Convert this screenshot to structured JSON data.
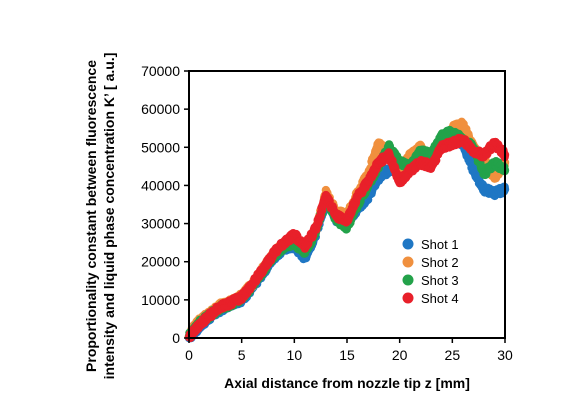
{
  "chart_data": {
    "type": "scatter",
    "xlabel": "Axial distance from nozzle tip z [mm]",
    "ylabel_lines": [
      "Proportionality constant between fluorescence",
      "intensity and liquid phase concentration  K’ [ a.u.]"
    ],
    "xlim": [
      0,
      30
    ],
    "ylim": [
      0,
      70000
    ],
    "x_ticks": [
      "0",
      "5",
      "10",
      "15",
      "20",
      "25",
      "30"
    ],
    "y_ticks": [
      "0",
      "10000",
      "20000",
      "30000",
      "40000",
      "50000",
      "60000",
      "70000"
    ],
    "grid": false,
    "legend_position": "lower-right inside",
    "series": [
      {
        "name": "Shot 1",
        "color": "#1f77c4",
        "x": [
          0,
          1,
          2,
          3,
          4,
          5,
          6,
          7,
          8,
          9,
          10,
          11,
          12,
          13,
          14,
          15,
          16,
          17,
          18,
          19,
          20,
          21,
          22,
          23,
          24,
          25,
          26,
          27,
          28,
          29,
          30
        ],
        "y": [
          0,
          3000,
          5500,
          7500,
          9000,
          10000,
          13000,
          17000,
          21000,
          23500,
          24000,
          21000,
          27000,
          36000,
          31000,
          30000,
          34000,
          37000,
          42000,
          44000,
          45000,
          47000,
          46000,
          48000,
          52000,
          53000,
          51000,
          44000,
          39000,
          38000,
          39000
        ]
      },
      {
        "name": "Shot 2",
        "color": "#f0903e",
        "x": [
          0,
          1,
          2,
          3,
          4,
          5,
          6,
          7,
          8,
          9,
          10,
          11,
          12,
          13,
          14,
          15,
          16,
          17,
          18,
          19,
          20,
          21,
          22,
          23,
          24,
          25,
          26,
          27,
          28,
          29,
          30
        ],
        "y": [
          1000,
          4500,
          6500,
          8500,
          9500,
          11000,
          14000,
          18000,
          22000,
          24500,
          25000,
          23500,
          28000,
          38000,
          33000,
          32000,
          38000,
          43000,
          51000,
          48000,
          44000,
          48000,
          50000,
          47000,
          51000,
          55000,
          56000,
          50000,
          47000,
          42000,
          46000
        ]
      },
      {
        "name": "Shot 3",
        "color": "#23a24a",
        "x": [
          0,
          1,
          2,
          3,
          4,
          5,
          6,
          7,
          8,
          9,
          10,
          11,
          12,
          13,
          14,
          15,
          16,
          17,
          18,
          19,
          20,
          21,
          22,
          23,
          24,
          25,
          26,
          27,
          28,
          29,
          30
        ],
        "y": [
          500,
          4000,
          6000,
          8000,
          9000,
          10500,
          13500,
          17500,
          21500,
          24000,
          25000,
          22500,
          27500,
          36500,
          31000,
          29000,
          35000,
          40000,
          45000,
          50000,
          46000,
          45000,
          49000,
          48000,
          53000,
          54000,
          52000,
          50000,
          43000,
          46000,
          44000
        ]
      },
      {
        "name": "Shot 4",
        "color": "#e8202a",
        "x": [
          0,
          1,
          2,
          3,
          4,
          5,
          6,
          7,
          8,
          9,
          10,
          11,
          12,
          13,
          14,
          15,
          16,
          17,
          18,
          19,
          20,
          21,
          22,
          23,
          24,
          25,
          26,
          27,
          28,
          29,
          30
        ],
        "y": [
          300,
          3500,
          6000,
          8200,
          9200,
          10800,
          14000,
          18000,
          22000,
          25000,
          27000,
          24000,
          28500,
          37000,
          32000,
          31000,
          37000,
          41000,
          46000,
          48000,
          41000,
          44000,
          46000,
          45000,
          50000,
          51000,
          52000,
          49000,
          48000,
          51000,
          48000
        ]
      }
    ]
  }
}
